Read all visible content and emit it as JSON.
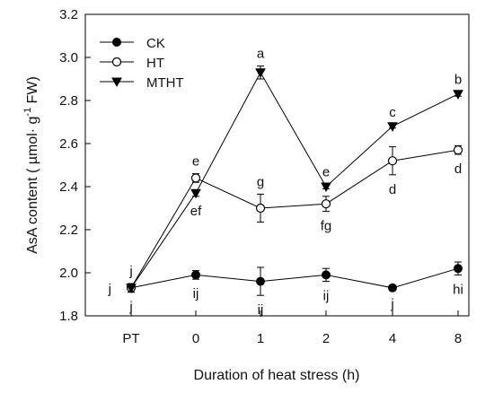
{
  "chart_data": {
    "type": "line",
    "xlabel": "Duration of heat stress (h)",
    "ylabel": "AsA content ( µmol· g⁻¹ FW)",
    "ylabel_parts": {
      "pre": "AsA content ( µmol· g",
      "sup": "-1",
      "post": " FW)"
    },
    "categories": [
      "PT",
      "0",
      "1",
      "2",
      "4",
      "8"
    ],
    "ylim": [
      1.8,
      3.2
    ],
    "yticks": [
      "1.8",
      "2.0",
      "2.2",
      "2.4",
      "2.6",
      "2.8",
      "3.0",
      "3.2"
    ],
    "grid": false,
    "legend_position": "top-left",
    "series": [
      {
        "name": "CK",
        "marker": "filled-circle",
        "values": [
          1.93,
          1.99,
          1.96,
          1.99,
          1.93,
          2.02
        ],
        "errors": [
          0.02,
          0.02,
          0.065,
          0.03,
          0.008,
          0.03
        ],
        "letters": [
          "j",
          "ij",
          "ij",
          "ij",
          "j",
          "hi"
        ],
        "letter_pos": [
          "below",
          "below",
          "below",
          "below",
          "below",
          "below"
        ]
      },
      {
        "name": "HT",
        "marker": "open-circle",
        "values": [
          1.93,
          2.44,
          2.3,
          2.32,
          2.52,
          2.57
        ],
        "errors": [
          0.02,
          0.02,
          0.065,
          0.035,
          0.065,
          0.02
        ],
        "letters": [
          "j",
          "e",
          "g",
          "fg",
          "d",
          "d"
        ],
        "letter_pos": [
          "above",
          "above",
          "above",
          "below",
          "below",
          "below"
        ]
      },
      {
        "name": "MTHT",
        "marker": "filled-triangle-down",
        "values": [
          1.93,
          2.37,
          2.93,
          2.4,
          2.68,
          2.83
        ],
        "errors": [
          0.02,
          0.015,
          0.03,
          0.01,
          0.008,
          0.01
        ],
        "letters": [
          "j",
          "ef",
          "a",
          "e",
          "c",
          "b"
        ],
        "letter_pos": [
          "left",
          "below",
          "above",
          "above",
          "above",
          "above"
        ]
      }
    ]
  }
}
